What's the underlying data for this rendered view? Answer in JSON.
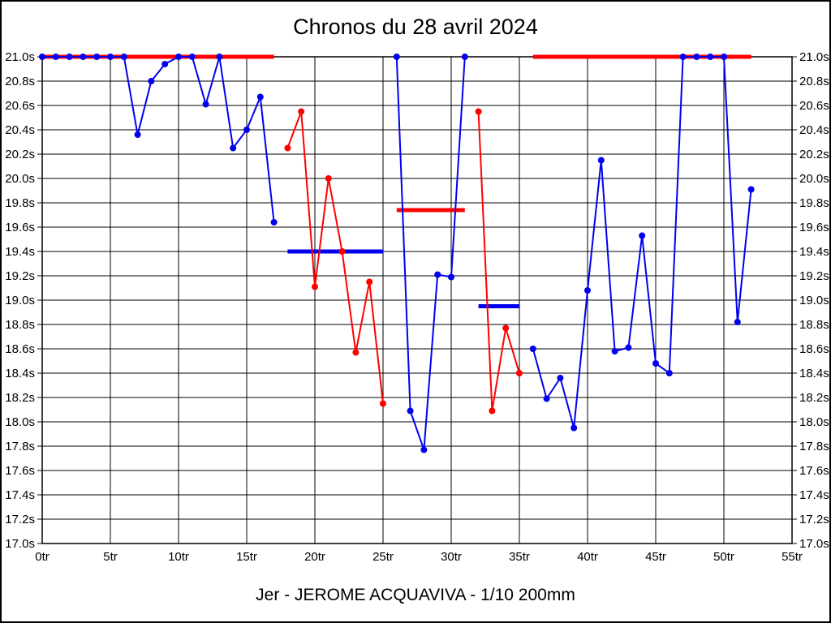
{
  "title": "Chronos du 28 avril 2024",
  "footer": "Jer - JEROME ACQUAVIVA - 1/10 200mm",
  "chart_data": {
    "type": "line",
    "title": "Chronos du 28 avril 2024",
    "subtitle": "Jer - JEROME ACQUAVIVA - 1/10 200mm",
    "xlabel": "",
    "ylabel": "",
    "x_unit": "tr",
    "y_unit": "s",
    "xlim": [
      0,
      55
    ],
    "ylim": [
      17.0,
      21.0
    ],
    "grid": true,
    "legend": "none",
    "colors": {
      "blue_series": "#0000ee",
      "red_series": "#ff0000",
      "grid": "#000000"
    },
    "y_ticks": [
      {
        "value": 21.0,
        "label": "21.0s"
      },
      {
        "value": 20.8,
        "label": "20.8s"
      },
      {
        "value": 20.6,
        "label": "20.6s"
      },
      {
        "value": 20.4,
        "label": "20.4s"
      },
      {
        "value": 20.2,
        "label": "20.2s"
      },
      {
        "value": 20.0,
        "label": "20.0s"
      },
      {
        "value": 19.8,
        "label": "19.8s"
      },
      {
        "value": 19.6,
        "label": "19.6s"
      },
      {
        "value": 19.4,
        "label": "19.4s"
      },
      {
        "value": 19.2,
        "label": "19.2s"
      },
      {
        "value": 19.0,
        "label": "19.0s"
      },
      {
        "value": 18.8,
        "label": "18.8s"
      },
      {
        "value": 18.6,
        "label": "18.6s"
      },
      {
        "value": 18.4,
        "label": "18.4s"
      },
      {
        "value": 18.2,
        "label": "18.2s"
      },
      {
        "value": 18.0,
        "label": "18.0s"
      },
      {
        "value": 17.8,
        "label": "17.8s"
      },
      {
        "value": 17.6,
        "label": "17.6s"
      },
      {
        "value": 17.4,
        "label": "17.4s"
      },
      {
        "value": 17.2,
        "label": "17.2s"
      },
      {
        "value": 17.0,
        "label": "17.0s"
      }
    ],
    "x_ticks": [
      {
        "value": 0,
        "label": "0tr"
      },
      {
        "value": 5,
        "label": "5tr"
      },
      {
        "value": 10,
        "label": "10tr"
      },
      {
        "value": 15,
        "label": "15tr"
      },
      {
        "value": 20,
        "label": "20tr"
      },
      {
        "value": 25,
        "label": "25tr"
      },
      {
        "value": 30,
        "label": "30tr"
      },
      {
        "value": 35,
        "label": "35tr"
      },
      {
        "value": 40,
        "label": "40tr"
      },
      {
        "value": 45,
        "label": "45tr"
      },
      {
        "value": 50,
        "label": "50tr"
      },
      {
        "value": 55,
        "label": "55tr"
      }
    ],
    "series": [
      {
        "name": "blue-run-1",
        "color": "#0000ee",
        "x": [
          0,
          1,
          2,
          3,
          4,
          5,
          6,
          7,
          8,
          9,
          10,
          11,
          12,
          13,
          14,
          15,
          16,
          17
        ],
        "values": [
          21.0,
          21.0,
          21.0,
          21.0,
          21.0,
          21.0,
          21.0,
          20.36,
          20.8,
          20.94,
          21.0,
          21.0,
          20.61,
          21.0,
          20.25,
          20.4,
          20.67,
          19.64
        ]
      },
      {
        "name": "blue-run-2",
        "color": "#0000ee",
        "x": [
          26,
          27,
          28,
          29,
          30,
          31
        ],
        "values": [
          21.0,
          18.09,
          17.77,
          19.21,
          19.19,
          21.0
        ]
      },
      {
        "name": "blue-run-3",
        "color": "#0000ee",
        "x": [
          36,
          37,
          38,
          39,
          40,
          41,
          42,
          43,
          44,
          45,
          46,
          47,
          48,
          49,
          50,
          51,
          52
        ],
        "values": [
          18.6,
          18.19,
          18.36,
          17.95,
          19.08,
          20.15,
          18.58,
          18.61,
          19.53,
          18.48,
          18.4,
          21.0,
          21.0,
          21.0,
          21.0,
          18.82,
          19.91
        ]
      },
      {
        "name": "red-run-1",
        "color": "#ff0000",
        "x": [
          18,
          19,
          20,
          21,
          22,
          23,
          24,
          25
        ],
        "values": [
          20.25,
          20.55,
          19.11,
          20.0,
          19.4,
          18.57,
          19.15,
          18.15
        ]
      },
      {
        "name": "red-run-2",
        "color": "#ff0000",
        "x": [
          32,
          33,
          34,
          35
        ],
        "values": [
          20.55,
          18.09,
          18.77,
          18.4
        ]
      }
    ],
    "mean_lines": [
      {
        "color": "#ff0000",
        "value": 21.0,
        "x_start": 0,
        "x_end": 17
      },
      {
        "color": "#0000ee",
        "value": 19.4,
        "x_start": 18,
        "x_end": 25
      },
      {
        "color": "#ff0000",
        "value": 19.74,
        "x_start": 26,
        "x_end": 31
      },
      {
        "color": "#0000ee",
        "value": 18.95,
        "x_start": 32,
        "x_end": 35
      },
      {
        "color": "#ff0000",
        "value": 21.0,
        "x_start": 36,
        "x_end": 52
      }
    ]
  }
}
